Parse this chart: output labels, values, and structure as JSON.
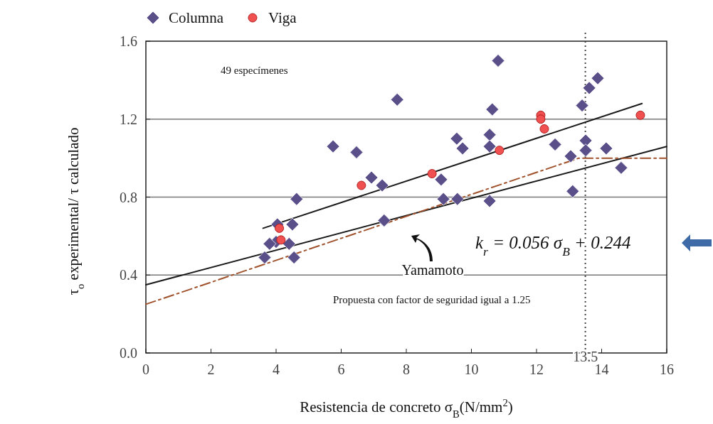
{
  "chart_data": {
    "type": "scatter",
    "xlabel": "Resistencia de concreto σ$_{B}$(N/mm$^{2}$)",
    "ylabel": "τ$_{o}$ experimental/ τ calculado",
    "xlim": [
      0,
      16
    ],
    "ylim": [
      0,
      1.6
    ],
    "xticks": [
      0,
      2,
      4,
      6,
      8,
      10,
      12,
      14,
      16
    ],
    "yticks": [
      {
        "value": 0,
        "label": "0.0"
      },
      0.4,
      0.8,
      1.2,
      1.6
    ],
    "grid": "y",
    "legend": "top left",
    "series": [
      {
        "name": "Columna",
        "color": "#5b4f8a",
        "marker": "diamond",
        "x": [
          3.65,
          4.55,
          4.0,
          4.04,
          4.5,
          4.63,
          3.8,
          4.4,
          5.75,
          6.47,
          6.93,
          7.26,
          7.72,
          7.32,
          9.07,
          9.14,
          9.57,
          9.55,
          9.73,
          10.82,
          10.64,
          10.56,
          10.56,
          10.56,
          12.57,
          13.05,
          13.11,
          13.4,
          13.51,
          13.51,
          13.62,
          13.88,
          14.14,
          14.6
        ],
        "values": [
          0.49,
          0.49,
          0.57,
          0.66,
          0.66,
          0.79,
          0.56,
          0.56,
          1.06,
          1.03,
          0.9,
          0.86,
          1.3,
          0.68,
          0.89,
          0.79,
          0.79,
          1.1,
          1.05,
          1.5,
          1.25,
          1.12,
          1.06,
          0.78,
          1.07,
          1.01,
          0.83,
          1.27,
          1.09,
          1.04,
          1.36,
          1.41,
          1.05,
          0.95
        ]
      },
      {
        "name": "Viga",
        "color": "#f05050",
        "marker": "circle",
        "x": [
          4.1,
          4.15,
          6.62,
          8.79,
          10.86,
          12.13,
          12.13,
          12.24,
          15.19
        ],
        "values": [
          0.64,
          0.58,
          0.86,
          0.92,
          1.04,
          1.22,
          1.2,
          1.15,
          1.22
        ]
      },
      {
        "type": "line",
        "color": "#1a1a1a",
        "x": [
          3.6,
          15.24
        ],
        "values": [
          0.64,
          1.28
        ]
      },
      {
        "type": "line",
        "color": "#1a1a1a",
        "x": [
          0,
          16
        ],
        "values": [
          0.35,
          1.06
        ]
      },
      {
        "type": "line",
        "color": "#a0522d",
        "line_style": "dashed",
        "x": [
          0,
          13.3,
          16
        ],
        "values": [
          0.25,
          1.0,
          1.0
        ]
      }
    ],
    "ref_lines": [
      {
        "axis": "x",
        "value": 13.5,
        "label": "13.5",
        "line_style": "dotted"
      }
    ],
    "annotations": [
      "49 especímenes",
      "Yamamoto",
      "Propuesta con factor de seguridad igual a 1.25",
      "k$_{r}$ = 0.056 σ$_{B}$ + 0.244"
    ]
  }
}
